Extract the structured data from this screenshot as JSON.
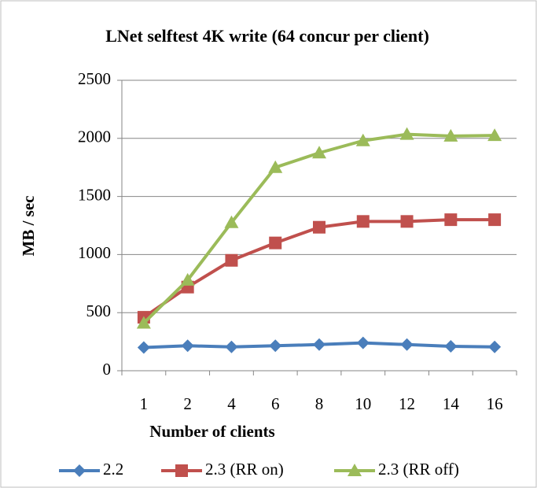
{
  "chart_data": {
    "type": "line",
    "title": "LNet selftest 4K write (64 concur per client)",
    "x_label": "Number of clients",
    "y_label": "MB / sec",
    "categories": [
      "1",
      "2",
      "4",
      "6",
      "8",
      "10",
      "12",
      "14",
      "16"
    ],
    "series": [
      {
        "name": "2.2",
        "color": "#4a7ebb",
        "marker": "diamond",
        "values": [
          200,
          215,
          205,
          215,
          225,
          240,
          225,
          210,
          205
        ]
      },
      {
        "name": "2.3 (RR on)",
        "color": "#c0504d",
        "marker": "square",
        "values": [
          460,
          720,
          950,
          1100,
          1235,
          1285,
          1285,
          1300,
          1300
        ]
      },
      {
        "name": "2.3 (RR off)",
        "color": "#9bbb59",
        "marker": "triangle",
        "values": [
          410,
          780,
          1275,
          1750,
          1875,
          1980,
          2035,
          2020,
          2025
        ]
      }
    ],
    "ylim": [
      0,
      2500
    ],
    "yticks": [
      0,
      500,
      1000,
      1500,
      2000,
      2500
    ],
    "grid": true,
    "legend": "bottom"
  }
}
